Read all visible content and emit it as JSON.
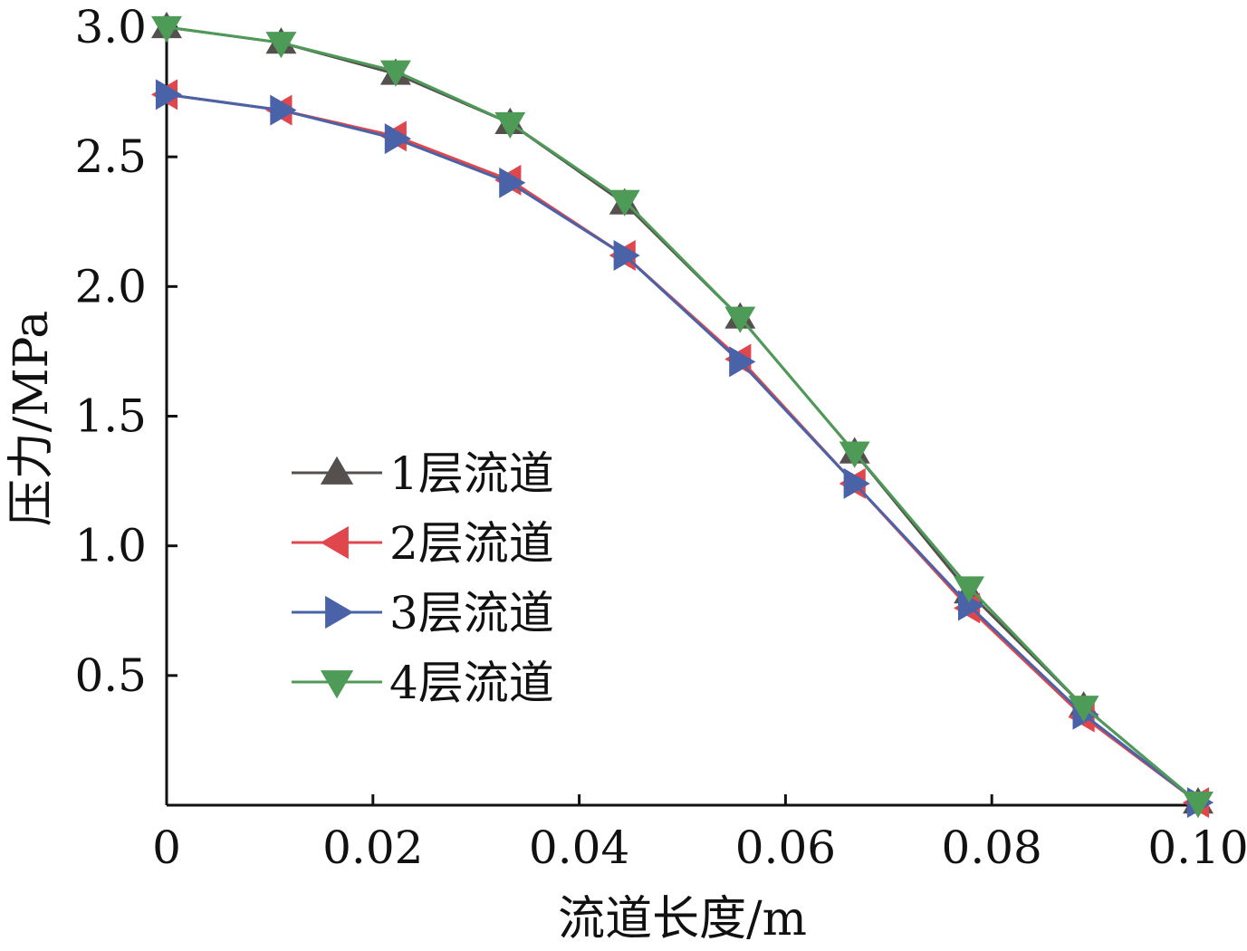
{
  "chart_data": {
    "type": "line",
    "xlabel": "流道长度/m",
    "ylabel": "压力/MPa",
    "xlim": [
      0,
      0.1
    ],
    "ylim": [
      0,
      3.0
    ],
    "x_ticks": [
      0,
      0.02,
      0.04,
      0.06,
      0.08,
      0.1
    ],
    "x_tick_labels": [
      "0",
      "0.02",
      "0.04",
      "0.06",
      "0.08",
      "0.10"
    ],
    "y_ticks": [
      0.5,
      1.0,
      1.5,
      2.0,
      2.5,
      3.0
    ],
    "y_tick_labels": [
      "0.5",
      "1.0",
      "1.5",
      "2.0",
      "2.5",
      "3.0"
    ],
    "grid": false,
    "legend_position": "center-left",
    "x": [
      0,
      0.0111,
      0.0222,
      0.0333,
      0.0444,
      0.0556,
      0.0667,
      0.0778,
      0.0889,
      0.1
    ],
    "series": [
      {
        "name": "1层流道",
        "marker": "triangle-up",
        "color": "#55504e",
        "values": [
          3.0,
          2.94,
          2.82,
          2.63,
          2.32,
          1.88,
          1.36,
          0.82,
          0.38,
          0.01
        ]
      },
      {
        "name": "2层流道",
        "marker": "triangle-left",
        "color": "#e0474c",
        "values": [
          2.74,
          2.68,
          2.58,
          2.41,
          2.12,
          1.72,
          1.24,
          0.76,
          0.34,
          0.01
        ]
      },
      {
        "name": "3层流道",
        "marker": "triangle-right",
        "color": "#4a63a8",
        "values": [
          2.74,
          2.68,
          2.57,
          2.4,
          2.12,
          1.71,
          1.24,
          0.77,
          0.35,
          0.01
        ]
      },
      {
        "name": "4层流道",
        "marker": "triangle-down",
        "color": "#4e9a57",
        "values": [
          3.0,
          2.94,
          2.83,
          2.63,
          2.33,
          1.88,
          1.36,
          0.84,
          0.38,
          0.01
        ]
      }
    ]
  }
}
